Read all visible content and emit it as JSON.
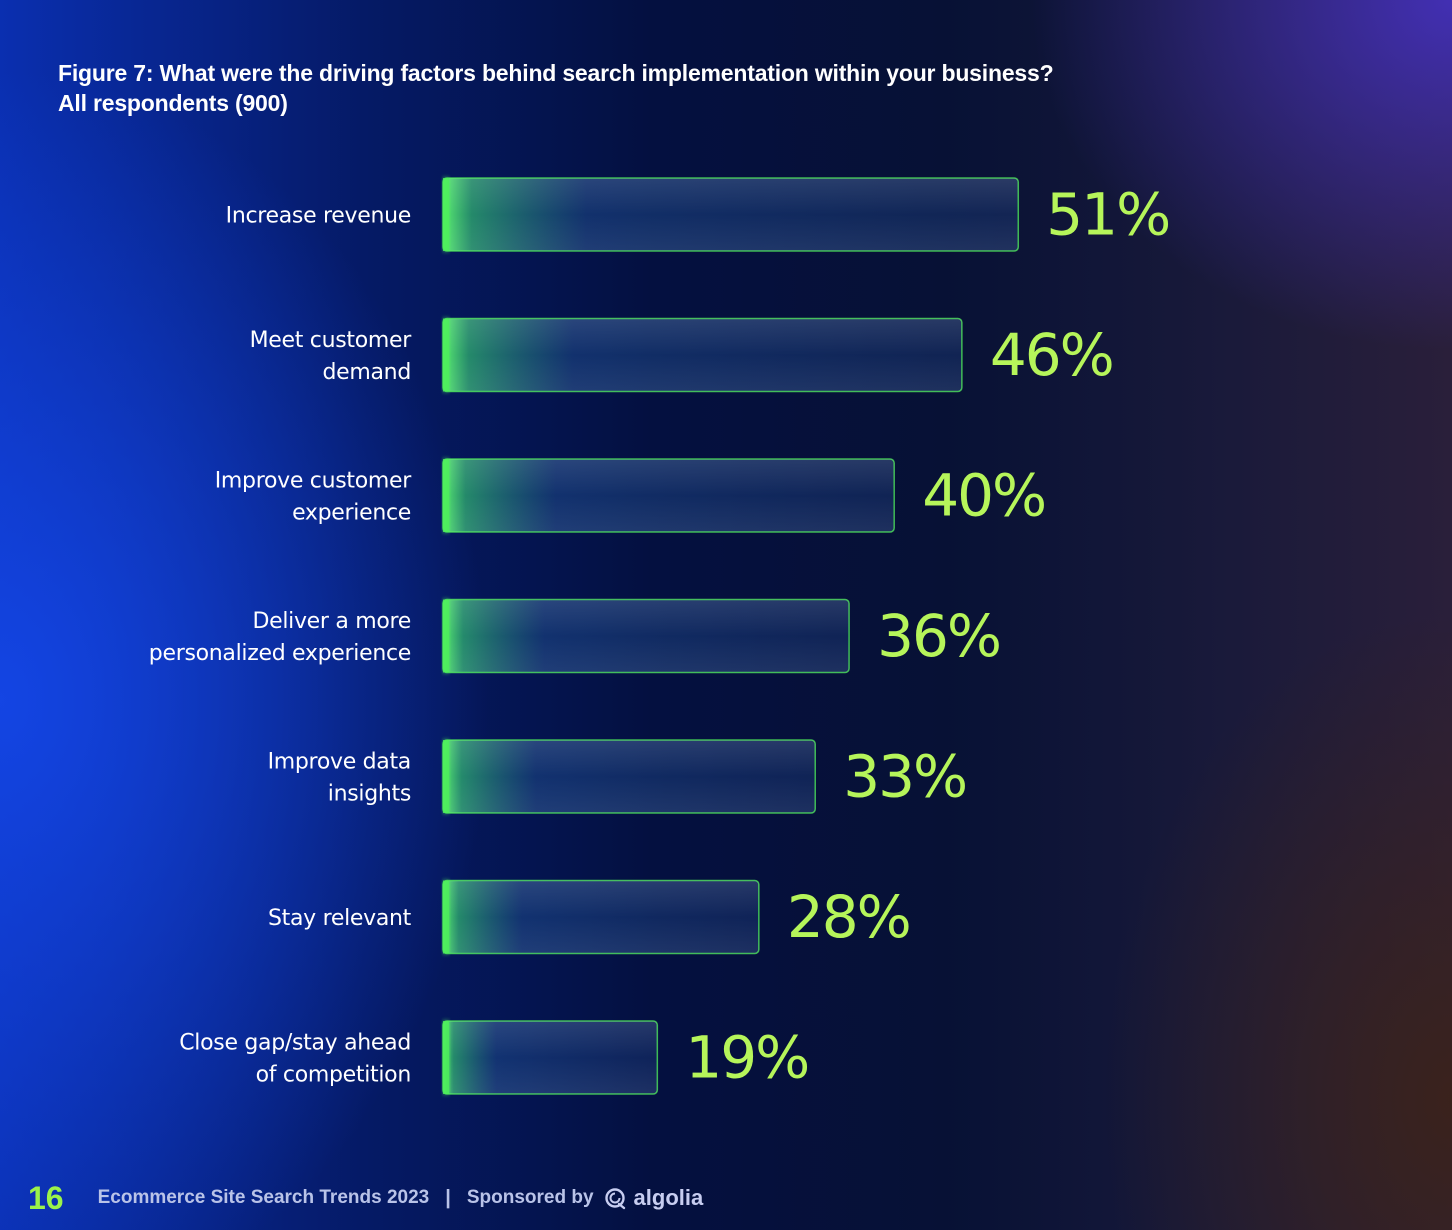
{
  "title_line1": "Figure 7: What were the driving factors behind search implementation within your business?",
  "title_line2": "All respondents (900)",
  "chart_data": {
    "type": "bar",
    "orientation": "horizontal",
    "categories": [
      [
        "Increase revenue"
      ],
      [
        "Meet customer",
        "demand"
      ],
      [
        "Improve customer",
        "experience"
      ],
      [
        "Deliver a more",
        "personalized experience"
      ],
      [
        "Improve data",
        "insights"
      ],
      [
        "Stay relevant"
      ],
      [
        "Close gap/stay ahead",
        "of competition"
      ]
    ],
    "values": [
      51,
      46,
      40,
      36,
      33,
      28,
      19
    ],
    "value_labels": [
      "51%",
      "46%",
      "40%",
      "36%",
      "33%",
      "28%",
      "19%"
    ],
    "unit": "%",
    "grid": false,
    "bar_color": "#4ef05a",
    "label_color": "#b6f55a"
  },
  "footer": {
    "page_number": "16",
    "report_title": "Ecommerce Site Search Trends  2023",
    "separator": "|",
    "sponsored_by": "Sponsored by",
    "logo_icon": "algolia-logo-icon",
    "logo_text": "algolia"
  }
}
